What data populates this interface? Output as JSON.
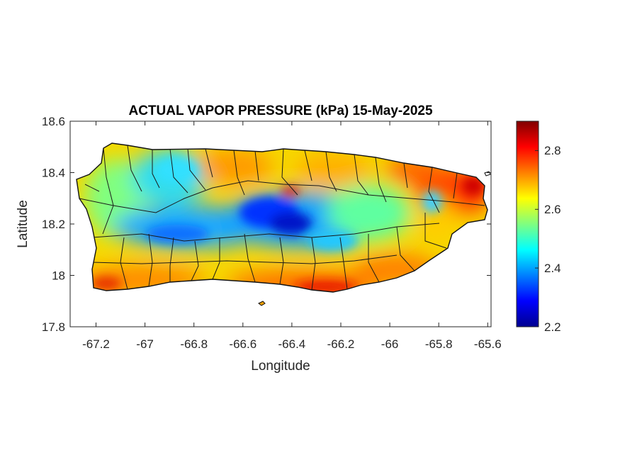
{
  "chart_data": {
    "type": "heatmap",
    "title": "ACTUAL VAPOR PRESSURE (kPa) 15-May-2025",
    "xlabel": "Longitude",
    "ylabel": "Latitude",
    "xlim": [
      -67.3,
      -65.58
    ],
    "ylim": [
      17.8,
      18.6
    ],
    "xticks": [
      "-67.2",
      "-67",
      "-66.8",
      "-66.6",
      "-66.4",
      "-66.2",
      "-66",
      "-65.8",
      "-65.6"
    ],
    "xtick_values": [
      -67.2,
      -67.0,
      -66.8,
      -66.6,
      -66.4,
      -66.2,
      -66.0,
      -65.8,
      -65.6
    ],
    "yticks": [
      "17.8",
      "18",
      "18.2",
      "18.4",
      "18.6"
    ],
    "ytick_values": [
      17.8,
      18.0,
      18.2,
      18.4,
      18.6
    ],
    "colorbar": {
      "colormap": "jet",
      "clim": [
        2.2,
        2.9
      ],
      "ticks": [
        "2.2",
        "2.4",
        "2.6",
        "2.8"
      ],
      "tick_values": [
        2.2,
        2.4,
        2.6,
        2.8
      ]
    },
    "grid": false,
    "region": "Puerto Rico municipalities",
    "summary": "Lowest vapor pressure (about 2.2-2.4 kPa) over the central interior mountains near -66.6 to -66.4 longitude; highest values (about 2.8-2.9 kPa) along the south coast and the eastern end of the island; north coast around 2.7-2.8 kPa."
  }
}
